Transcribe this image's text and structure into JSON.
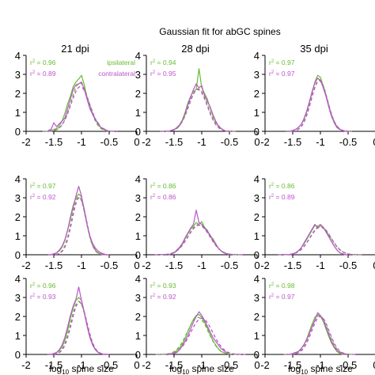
{
  "colors": {
    "ipsilateral": "#66bb33",
    "contralateral": "#bb55cc"
  },
  "chart_data": {
    "type": "line",
    "title": "Gaussian fit for abGC spines",
    "xlabel": "log10 spine size",
    "xlabel_prefix": "log",
    "xlabel_sub": "10",
    "xlabel_suffix": " spine size",
    "xlim": [
      -2,
      0
    ],
    "ylim": [
      0,
      4
    ],
    "x_ticks": [
      -2,
      -1.5,
      -1,
      -0.5,
      0
    ],
    "y_ticks": [
      0,
      1,
      2,
      3,
      4
    ],
    "x_tick_labels": [
      "-2",
      "-1.5",
      "-1",
      "-0.5",
      "0"
    ],
    "y_tick_labels": [
      "0",
      "1",
      "2",
      "3",
      "4"
    ],
    "columns": [
      "21 dpi",
      "28 dpi",
      "35 dpi"
    ],
    "legend": [
      "ipsilateral",
      "contralateral"
    ],
    "x": [
      -1.6,
      -1.55,
      -1.5,
      -1.45,
      -1.4,
      -1.35,
      -1.3,
      -1.25,
      -1.2,
      -1.15,
      -1.1,
      -1.05,
      -1.0,
      -0.95,
      -0.9,
      -0.85,
      -0.8,
      -0.75,
      -0.7,
      -0.65,
      -0.6,
      -0.55,
      -0.5
    ],
    "panels": [
      {
        "row": 0,
        "col": 0,
        "r2": [
          "0.96",
          "0.89"
        ],
        "show_legend": true,
        "series": [
          {
            "name": "ipsilateral",
            "values": [
              0.0,
              0.05,
              0.1,
              0.15,
              0.3,
              0.55,
              0.95,
              1.45,
              1.85,
              2.35,
              2.6,
              2.75,
              2.95,
              2.45,
              1.8,
              1.4,
              0.95,
              0.65,
              0.35,
              0.2,
              0.1,
              0.05,
              0.0
            ],
            "fit": {
              "amp": 2.55,
              "mu": -1.03,
              "sigma": 0.16
            }
          },
          {
            "name": "contralateral",
            "values": [
              0.05,
              0.1,
              0.45,
              0.25,
              0.4,
              0.55,
              0.7,
              1.2,
              1.7,
              2.2,
              2.45,
              2.5,
              2.6,
              2.2,
              1.7,
              1.2,
              0.9,
              0.6,
              0.45,
              0.2,
              0.15,
              0.05,
              0.0
            ],
            "fit": {
              "amp": 2.35,
              "mu": -1.02,
              "sigma": 0.17
            }
          }
        ]
      },
      {
        "row": 0,
        "col": 1,
        "r2": [
          "0.94",
          "0.95"
        ],
        "show_legend": false,
        "series": [
          {
            "name": "ipsilateral",
            "values": [
              0.0,
              0.05,
              0.1,
              0.2,
              0.35,
              0.6,
              1.0,
              1.5,
              1.85,
              2.1,
              2.2,
              3.3,
              2.3,
              2.0,
              1.7,
              1.25,
              0.85,
              0.5,
              0.3,
              0.15,
              0.05,
              0.0,
              0.0
            ],
            "fit": {
              "amp": 2.25,
              "mu": -1.06,
              "sigma": 0.17
            }
          },
          {
            "name": "contralateral",
            "values": [
              0.0,
              0.05,
              0.1,
              0.15,
              0.3,
              0.55,
              0.9,
              1.4,
              1.8,
              2.2,
              2.5,
              2.3,
              2.4,
              1.9,
              1.6,
              1.3,
              0.9,
              0.55,
              0.3,
              0.15,
              0.05,
              0.0,
              0.0
            ],
            "fit": {
              "amp": 2.2,
              "mu": -1.07,
              "sigma": 0.17
            }
          }
        ]
      },
      {
        "row": 0,
        "col": 2,
        "r2": [
          "0.97",
          "0.97"
        ],
        "show_legend": false,
        "series": [
          {
            "name": "ipsilateral",
            "values": [
              0.0,
              0.0,
              0.05,
              0.1,
              0.2,
              0.35,
              0.6,
              1.0,
              1.5,
              2.05,
              2.6,
              2.95,
              2.85,
              2.4,
              1.9,
              1.3,
              0.8,
              0.45,
              0.2,
              0.1,
              0.05,
              0.0,
              0.0
            ],
            "fit": {
              "amp": 2.7,
              "mu": -1.02,
              "sigma": 0.15
            }
          },
          {
            "name": "contralateral",
            "values": [
              0.0,
              0.0,
              0.05,
              0.1,
              0.2,
              0.35,
              0.65,
              1.05,
              1.55,
              2.1,
              2.55,
              2.8,
              2.7,
              2.3,
              1.85,
              1.3,
              0.8,
              0.45,
              0.2,
              0.1,
              0.05,
              0.0,
              0.0
            ],
            "fit": {
              "amp": 2.65,
              "mu": -1.02,
              "sigma": 0.15
            }
          }
        ]
      },
      {
        "row": 1,
        "col": 0,
        "r2": [
          "0.97",
          "0.92"
        ],
        "show_legend": false,
        "series": [
          {
            "name": "ipsilateral",
            "values": [
              0.0,
              0.0,
              0.05,
              0.1,
              0.2,
              0.4,
              0.75,
              1.3,
              2.0,
              2.6,
              3.0,
              3.2,
              3.05,
              2.4,
              1.6,
              0.95,
              0.5,
              0.25,
              0.1,
              0.05,
              0.0,
              0.0,
              0.0
            ],
            "fit": {
              "amp": 3.05,
              "mu": -1.05,
              "sigma": 0.13
            }
          },
          {
            "name": "contralateral",
            "values": [
              0.0,
              0.0,
              0.05,
              0.1,
              0.25,
              0.45,
              0.8,
              1.3,
              1.9,
              2.5,
              3.1,
              3.6,
              3.1,
              2.3,
              1.6,
              1.0,
              0.6,
              0.35,
              0.2,
              0.1,
              0.05,
              0.0,
              0.0
            ],
            "fit": {
              "amp": 3.0,
              "mu": -1.04,
              "sigma": 0.13
            }
          }
        ]
      },
      {
        "row": 1,
        "col": 1,
        "r2": [
          "0.86",
          "0.86"
        ],
        "show_legend": false,
        "series": [
          {
            "name": "ipsilateral",
            "values": [
              0.0,
              0.05,
              0.1,
              0.2,
              0.35,
              0.55,
              0.85,
              1.1,
              1.35,
              1.5,
              1.7,
              1.6,
              1.75,
              1.45,
              1.3,
              1.0,
              0.85,
              0.6,
              0.35,
              0.2,
              0.1,
              0.05,
              0.0
            ],
            "fit": {
              "amp": 1.6,
              "mu": -1.05,
              "sigma": 0.2
            }
          },
          {
            "name": "contralateral",
            "values": [
              0.0,
              0.05,
              0.1,
              0.25,
              0.4,
              0.6,
              0.9,
              1.15,
              1.4,
              1.6,
              2.35,
              1.7,
              1.6,
              1.4,
              1.25,
              1.05,
              0.8,
              0.55,
              0.35,
              0.2,
              0.1,
              0.05,
              0.0
            ],
            "fit": {
              "amp": 1.55,
              "mu": -1.05,
              "sigma": 0.2
            }
          }
        ]
      },
      {
        "row": 1,
        "col": 2,
        "r2": [
          "0.86",
          "0.89"
        ],
        "show_legend": false,
        "series": [
          {
            "name": "ipsilateral",
            "values": [
              0.0,
              0.0,
              0.05,
              0.1,
              0.2,
              0.35,
              0.55,
              0.8,
              1.05,
              1.3,
              1.55,
              1.5,
              1.6,
              1.45,
              1.25,
              1.0,
              0.7,
              0.45,
              0.25,
              0.1,
              0.05,
              0.0,
              0.0
            ],
            "fit": {
              "amp": 1.5,
              "mu": -1.0,
              "sigma": 0.19
            }
          },
          {
            "name": "contralateral",
            "values": [
              0.0,
              0.0,
              0.05,
              0.1,
              0.2,
              0.35,
              0.6,
              0.85,
              1.1,
              1.35,
              1.6,
              1.4,
              1.55,
              1.45,
              1.2,
              0.95,
              0.7,
              0.45,
              0.25,
              0.1,
              0.05,
              0.0,
              0.0
            ],
            "fit": {
              "amp": 1.45,
              "mu": -1.0,
              "sigma": 0.19
            }
          }
        ]
      },
      {
        "row": 2,
        "col": 0,
        "r2": [
          "0.96",
          "0.93"
        ],
        "show_legend": false,
        "series": [
          {
            "name": "ipsilateral",
            "values": [
              0.0,
              0.0,
              0.05,
              0.1,
              0.2,
              0.4,
              0.75,
              1.25,
              1.9,
              2.45,
              2.85,
              3.0,
              2.85,
              2.25,
              1.55,
              0.95,
              0.5,
              0.25,
              0.1,
              0.05,
              0.0,
              0.0,
              0.0
            ],
            "fit": {
              "amp": 2.8,
              "mu": -1.05,
              "sigma": 0.14
            }
          },
          {
            "name": "contralateral",
            "values": [
              0.0,
              0.0,
              0.05,
              0.1,
              0.25,
              0.5,
              0.9,
              1.45,
              2.05,
              2.55,
              2.9,
              3.55,
              2.85,
              2.2,
              1.5,
              0.9,
              0.5,
              0.25,
              0.1,
              0.05,
              0.0,
              0.0,
              0.0
            ],
            "fit": {
              "amp": 2.75,
              "mu": -1.04,
              "sigma": 0.14
            }
          }
        ]
      },
      {
        "row": 2,
        "col": 1,
        "r2": [
          "0.93",
          "0.92"
        ],
        "show_legend": false,
        "series": [
          {
            "name": "ipsilateral",
            "values": [
              0.0,
              0.05,
              0.1,
              0.2,
              0.35,
              0.55,
              0.85,
              1.2,
              1.55,
              1.85,
              2.05,
              2.1,
              1.95,
              1.7,
              1.4,
              1.05,
              0.75,
              0.5,
              0.3,
              0.15,
              0.1,
              0.05,
              0.0
            ],
            "fit": {
              "amp": 1.95,
              "mu": -1.07,
              "sigma": 0.19
            }
          },
          {
            "name": "contralateral",
            "values": [
              0.0,
              0.0,
              0.05,
              0.1,
              0.25,
              0.45,
              0.7,
              1.0,
              1.35,
              1.7,
              2.0,
              2.25,
              2.05,
              1.8,
              1.5,
              1.2,
              0.9,
              0.7,
              0.5,
              0.3,
              0.2,
              0.1,
              0.05
            ],
            "fit": {
              "amp": 1.9,
              "mu": -1.0,
              "sigma": 0.2
            }
          }
        ]
      },
      {
        "row": 2,
        "col": 2,
        "r2": [
          "0.98",
          "0.97"
        ],
        "show_legend": false,
        "series": [
          {
            "name": "ipsilateral",
            "values": [
              0.0,
              0.0,
              0.05,
              0.1,
              0.15,
              0.3,
              0.5,
              0.8,
              1.2,
              1.6,
              1.95,
              2.1,
              2.0,
              1.75,
              1.35,
              0.95,
              0.6,
              0.35,
              0.15,
              0.05,
              0.0,
              0.0,
              0.0
            ],
            "fit": {
              "amp": 2.05,
              "mu": -1.02,
              "sigma": 0.16
            }
          },
          {
            "name": "contralateral",
            "values": [
              0.0,
              0.0,
              0.05,
              0.1,
              0.15,
              0.3,
              0.5,
              0.75,
              1.1,
              1.45,
              1.8,
              2.2,
              2.05,
              1.8,
              1.45,
              1.05,
              0.7,
              0.4,
              0.2,
              0.1,
              0.05,
              0.0,
              0.0
            ],
            "fit": {
              "amp": 2.0,
              "mu": -1.0,
              "sigma": 0.16
            }
          }
        ]
      }
    ]
  }
}
